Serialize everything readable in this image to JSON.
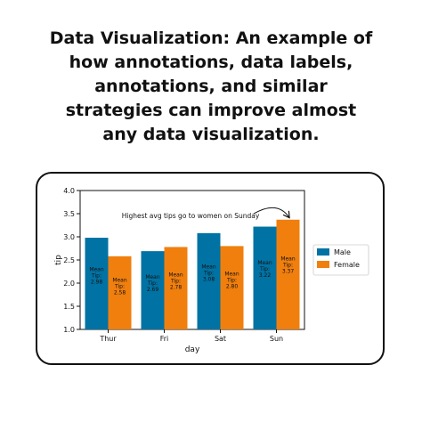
{
  "headline": {
    "lines": [
      "Data Visualization: An example of",
      "how annotations, data labels,",
      "annotations, and similar",
      "strategies can improve almost",
      "any data visualization."
    ]
  },
  "chart_data": {
    "type": "bar",
    "title": "",
    "xlabel": "day",
    "ylabel": "tip",
    "categories": [
      "Thur",
      "Fri",
      "Sat",
      "Sun"
    ],
    "ylim": [
      1.0,
      4.0
    ],
    "yticks": [
      "1.0",
      "1.5",
      "2.0",
      "2.5",
      "3.0",
      "3.5",
      "4.0"
    ],
    "grid": false,
    "legend_position": "right",
    "series": [
      {
        "name": "Male",
        "color": "#0072a3",
        "values": [
          2.98,
          2.69,
          3.08,
          3.22
        ],
        "value_labels": [
          "2.98",
          "2.69",
          "3.08",
          "3.22"
        ]
      },
      {
        "name": "Female",
        "color": "#f07f0e",
        "values": [
          2.58,
          2.78,
          2.8,
          3.37
        ],
        "value_labels": [
          "2.58",
          "2.78",
          "2.80",
          "3.37"
        ]
      }
    ],
    "data_label_prefix_line1": "Mean",
    "data_label_prefix_line2": "Tip:",
    "annotation": {
      "text": "Highest avg tips go to women on Sunday",
      "target_category": "Sun",
      "target_series": "Female"
    }
  }
}
